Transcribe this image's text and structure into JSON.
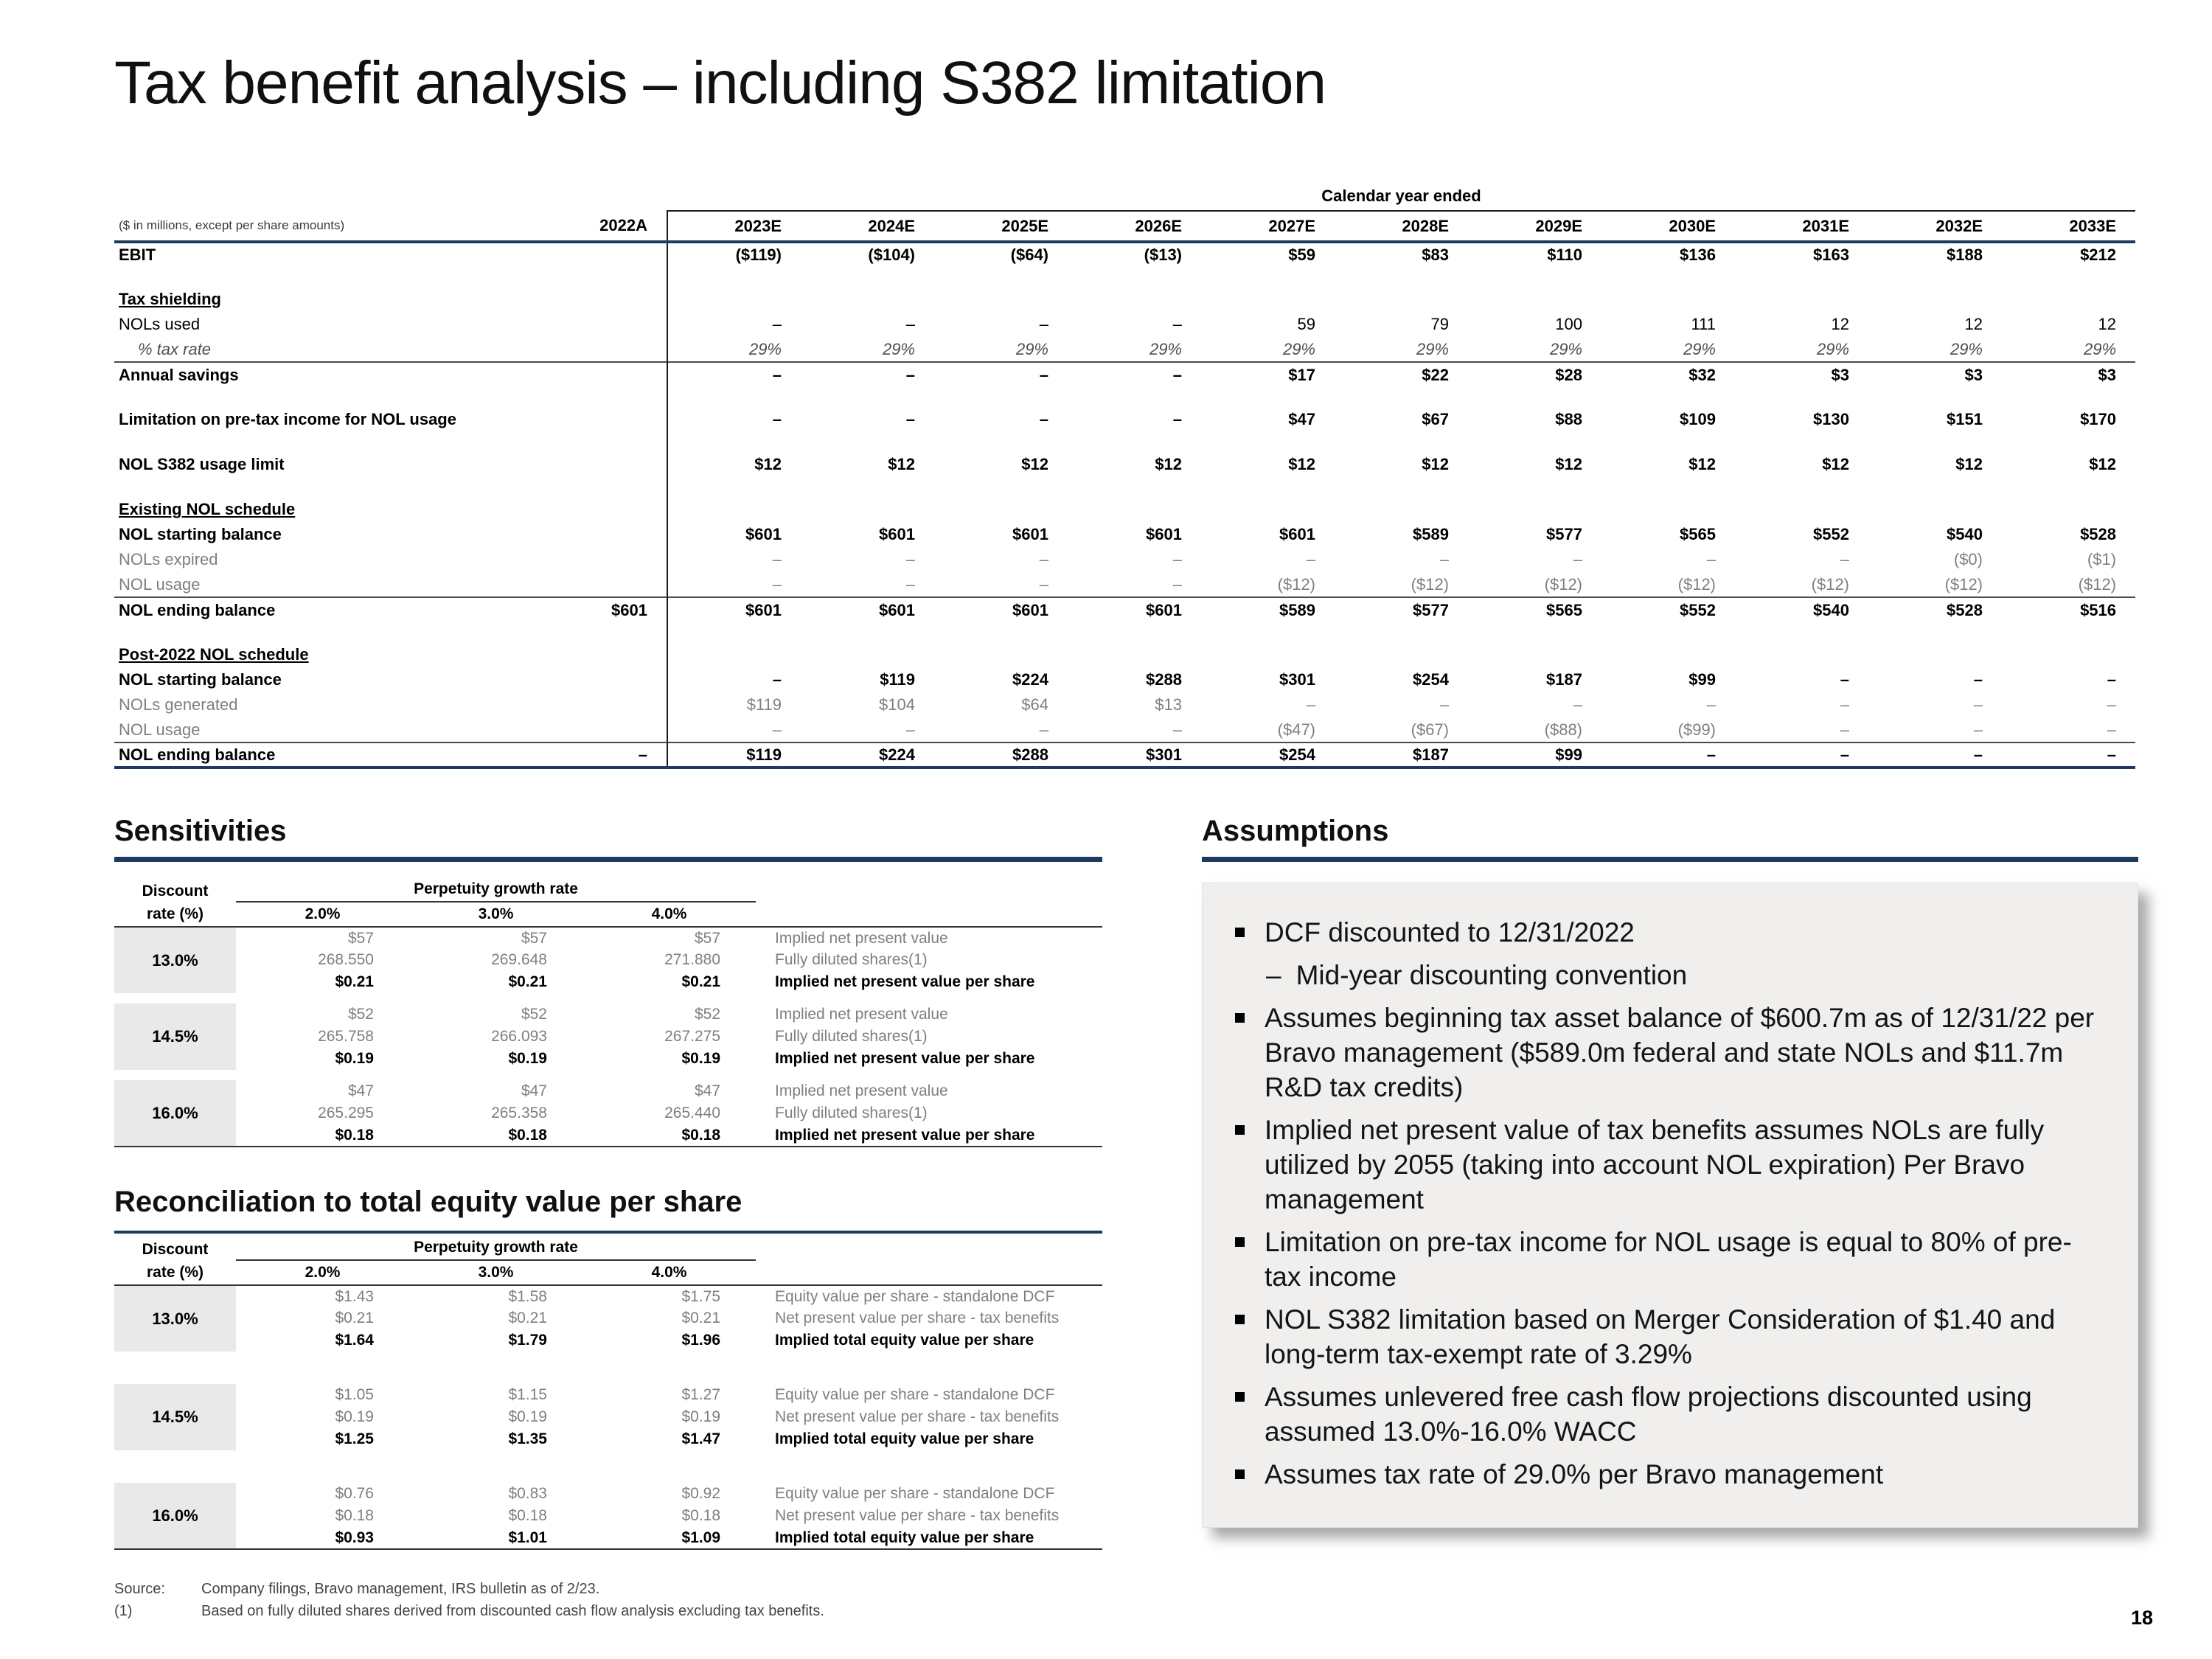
{
  "page": {
    "title": "Tax benefit analysis – including S382 limitation",
    "page_number": "18"
  },
  "main_table": {
    "group_header": "Calendar year ended",
    "units_note": "($ in millions, except per share amounts)",
    "columns": [
      "2022A",
      "2023E",
      "2024E",
      "2025E",
      "2026E",
      "2027E",
      "2028E",
      "2029E",
      "2030E",
      "2031E",
      "2032E",
      "2033E"
    ],
    "rows": [
      {
        "label": "EBIT",
        "style": "bold",
        "values": [
          "",
          "($119)",
          "($104)",
          "($64)",
          "($13)",
          "$59",
          "$83",
          "$110",
          "$136",
          "$163",
          "$188",
          "$212"
        ]
      },
      {
        "label": "",
        "style": "spacer",
        "values": []
      },
      {
        "label": "Tax shielding",
        "style": "section",
        "values": []
      },
      {
        "label": "NOLs used",
        "style": "plain",
        "values": [
          "",
          "–",
          "–",
          "–",
          "–",
          "59",
          "79",
          "100",
          "111",
          "12",
          "12",
          "12"
        ]
      },
      {
        "label": "% tax rate",
        "style": "italic",
        "values": [
          "",
          "29%",
          "29%",
          "29%",
          "29%",
          "29%",
          "29%",
          "29%",
          "29%",
          "29%",
          "29%",
          "29%"
        ]
      },
      {
        "label": "Annual savings",
        "style": "total",
        "values": [
          "",
          "–",
          "–",
          "–",
          "–",
          "$17",
          "$22",
          "$28",
          "$32",
          "$3",
          "$3",
          "$3"
        ]
      },
      {
        "label": "",
        "style": "spacer",
        "values": []
      },
      {
        "label": "Limitation on pre-tax income for NOL usage",
        "style": "bold",
        "values": [
          "",
          "–",
          "–",
          "–",
          "–",
          "$47",
          "$67",
          "$88",
          "$109",
          "$130",
          "$151",
          "$170"
        ]
      },
      {
        "label": "",
        "style": "spacer",
        "values": []
      },
      {
        "label": "NOL S382 usage limit",
        "style": "bold",
        "values": [
          "",
          "$12",
          "$12",
          "$12",
          "$12",
          "$12",
          "$12",
          "$12",
          "$12",
          "$12",
          "$12",
          "$12"
        ]
      },
      {
        "label": "",
        "style": "spacer",
        "values": []
      },
      {
        "label": "Existing NOL schedule",
        "style": "section",
        "values": []
      },
      {
        "label": "NOL starting balance",
        "style": "bold",
        "values": [
          "",
          "$601",
          "$601",
          "$601",
          "$601",
          "$601",
          "$589",
          "$577",
          "$565",
          "$552",
          "$540",
          "$528"
        ]
      },
      {
        "label": "NOLs expired",
        "style": "muted",
        "values": [
          "",
          "–",
          "–",
          "–",
          "–",
          "–",
          "–",
          "–",
          "–",
          "–",
          "($0)",
          "($1)"
        ]
      },
      {
        "label": "NOL usage",
        "style": "muted",
        "values": [
          "",
          "–",
          "–",
          "–",
          "–",
          "($12)",
          "($12)",
          "($12)",
          "($12)",
          "($12)",
          "($12)",
          "($12)"
        ]
      },
      {
        "label": "NOL ending balance",
        "style": "total",
        "values": [
          "$601",
          "$601",
          "$601",
          "$601",
          "$601",
          "$589",
          "$577",
          "$565",
          "$552",
          "$540",
          "$528",
          "$516"
        ]
      },
      {
        "label": "",
        "style": "spacer",
        "values": []
      },
      {
        "label": "Post-2022 NOL schedule",
        "style": "section",
        "values": []
      },
      {
        "label": "NOL starting balance",
        "style": "bold",
        "values": [
          "",
          "–",
          "$119",
          "$224",
          "$288",
          "$301",
          "$254",
          "$187",
          "$99",
          "–",
          "–",
          "–"
        ]
      },
      {
        "label": "NOLs generated",
        "style": "muted",
        "values": [
          "",
          "$119",
          "$104",
          "$64",
          "$13",
          "–",
          "–",
          "–",
          "–",
          "–",
          "–",
          "–"
        ]
      },
      {
        "label": "NOL usage",
        "style": "muted",
        "values": [
          "",
          "–",
          "–",
          "–",
          "–",
          "($47)",
          "($67)",
          "($88)",
          "($99)",
          "–",
          "–",
          "–"
        ]
      },
      {
        "label": "NOL ending balance",
        "style": "total",
        "values": [
          "–",
          "$119",
          "$224",
          "$288",
          "$301",
          "$254",
          "$187",
          "$99",
          "–",
          "–",
          "–",
          "–"
        ]
      }
    ]
  },
  "sensitivities": {
    "heading": "Sensitivities",
    "corner_label_line1": "Discount",
    "corner_label_line2": "rate (%)",
    "group_header": "Perpetuity growth rate",
    "columns": [
      "2.0%",
      "3.0%",
      "4.0%"
    ],
    "rows": [
      {
        "rate": "13.0%",
        "lines": [
          {
            "style": "soft",
            "values": [
              "$57",
              "$57",
              "$57"
            ],
            "label": "Implied net present value"
          },
          {
            "style": "soft",
            "values": [
              "268.550",
              "269.648",
              "271.880"
            ],
            "label": "Fully diluted shares(1)"
          },
          {
            "style": "bold",
            "values": [
              "$0.21",
              "$0.21",
              "$0.21"
            ],
            "label": "Implied net present value per share"
          }
        ]
      },
      {
        "rate": "14.5%",
        "lines": [
          {
            "style": "soft",
            "values": [
              "$52",
              "$52",
              "$52"
            ],
            "label": "Implied net present value"
          },
          {
            "style": "soft",
            "values": [
              "265.758",
              "266.093",
              "267.275"
            ],
            "label": "Fully diluted shares(1)"
          },
          {
            "style": "bold",
            "values": [
              "$0.19",
              "$0.19",
              "$0.19"
            ],
            "label": "Implied net present value per share"
          }
        ]
      },
      {
        "rate": "16.0%",
        "lines": [
          {
            "style": "soft",
            "values": [
              "$47",
              "$47",
              "$47"
            ],
            "label": "Implied net present value"
          },
          {
            "style": "soft",
            "values": [
              "265.295",
              "265.358",
              "265.440"
            ],
            "label": "Fully diluted shares(1)"
          },
          {
            "style": "bold",
            "values": [
              "$0.18",
              "$0.18",
              "$0.18"
            ],
            "label": "Implied net present value per share"
          }
        ]
      }
    ]
  },
  "reconciliation": {
    "heading": "Reconciliation to total equity value per share",
    "corner_label_line1": "Discount",
    "corner_label_line2": "rate (%)",
    "group_header": "Perpetuity growth rate",
    "columns": [
      "2.0%",
      "3.0%",
      "4.0%"
    ],
    "rows": [
      {
        "rate": "13.0%",
        "lines": [
          {
            "style": "soft",
            "values": [
              "$1.43",
              "$1.58",
              "$1.75"
            ],
            "label": "Equity value per share - standalone DCF"
          },
          {
            "style": "soft",
            "values": [
              "$0.21",
              "$0.21",
              "$0.21"
            ],
            "label": "Net present value per share - tax benefits"
          },
          {
            "style": "bold",
            "values": [
              "$1.64",
              "$1.79",
              "$1.96"
            ],
            "label": "Implied total equity value per share"
          }
        ]
      },
      {
        "rate": "14.5%",
        "lines": [
          {
            "style": "soft",
            "values": [
              "$1.05",
              "$1.15",
              "$1.27"
            ],
            "label": "Equity value per share - standalone DCF"
          },
          {
            "style": "soft",
            "values": [
              "$0.19",
              "$0.19",
              "$0.19"
            ],
            "label": "Net present value per share - tax benefits"
          },
          {
            "style": "bold",
            "values": [
              "$1.25",
              "$1.35",
              "$1.47"
            ],
            "label": "Implied total equity value per share"
          }
        ]
      },
      {
        "rate": "16.0%",
        "lines": [
          {
            "style": "soft",
            "values": [
              "$0.76",
              "$0.83",
              "$0.92"
            ],
            "label": "Equity value per share - standalone DCF"
          },
          {
            "style": "soft",
            "values": [
              "$0.18",
              "$0.18",
              "$0.18"
            ],
            "label": "Net present value per share - tax benefits"
          },
          {
            "style": "bold",
            "values": [
              "$0.93",
              "$1.01",
              "$1.09"
            ],
            "label": "Implied total equity value per share"
          }
        ]
      }
    ]
  },
  "assumptions": {
    "heading": "Assumptions",
    "items": [
      {
        "text": "DCF discounted to 12/31/2022",
        "sub": [
          "Mid-year discounting convention"
        ]
      },
      {
        "text": "Assumes beginning tax asset balance of $600.7m as of 12/31/22 per Bravo management ($589.0m federal and state NOLs and $11.7m R&D tax credits)"
      },
      {
        "text": "Implied net present value of tax benefits assumes NOLs are fully utilized by 2055 (taking into account NOL expiration) Per Bravo management"
      },
      {
        "text": "Limitation on pre-tax income for NOL usage is equal to 80% of pre-tax income"
      },
      {
        "text": "NOL S382 limitation based on Merger Consideration of $1.40 and long-term tax-exempt rate of 3.29%"
      },
      {
        "text": "Assumes unlevered free cash flow projections discounted using assumed 13.0%-16.0% WACC"
      },
      {
        "text": "Assumes tax rate of 29.0% per Bravo management"
      }
    ]
  },
  "footer": {
    "source_label": "Source:",
    "source_text": "Company filings, Bravo management, IRS bulletin as of 2/23.",
    "note_label": "(1)",
    "note_text": "Based on fully diluted shares derived from discounted cash flow analysis excluding tax benefits."
  }
}
